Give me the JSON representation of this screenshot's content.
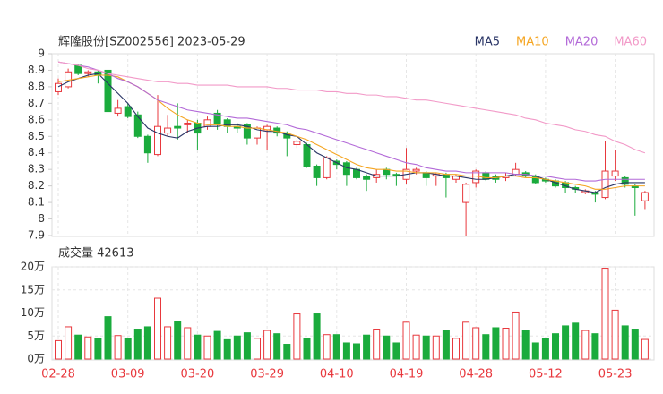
{
  "chart_data": [
    {
      "type": "candlestick",
      "title": "辉隆股份[SZ002556] 2023-05-29",
      "open": [
        8.77,
        8.8,
        8.93,
        8.88,
        8.89,
        8.9,
        8.64,
        8.68,
        8.63,
        8.5,
        8.39,
        8.52,
        8.56,
        8.57,
        8.58,
        8.56,
        8.64,
        8.6,
        8.56,
        8.57,
        8.49,
        8.54,
        8.55,
        8.52,
        8.45,
        8.45,
        8.32,
        8.25,
        8.35,
        8.34,
        8.3,
        8.26,
        8.25,
        8.3,
        8.27,
        8.24,
        8.29,
        8.28,
        8.26,
        8.27,
        8.24,
        8.1,
        8.22,
        8.28,
        8.26,
        8.25,
        8.27,
        8.28,
        8.26,
        8.24,
        8.23,
        8.22,
        8.19,
        8.16,
        8.16,
        8.13,
        8.26,
        8.25,
        8.2,
        8.11
      ],
      "high": [
        8.85,
        8.91,
        8.94,
        8.9,
        8.9,
        8.91,
        8.72,
        8.7,
        8.65,
        8.51,
        8.75,
        8.63,
        8.7,
        8.6,
        8.6,
        8.62,
        8.66,
        8.61,
        8.58,
        8.58,
        8.56,
        8.57,
        8.56,
        8.53,
        8.48,
        8.46,
        8.33,
        8.38,
        8.36,
        8.35,
        8.31,
        8.27,
        8.3,
        8.31,
        8.28,
        8.43,
        8.31,
        8.29,
        8.28,
        8.28,
        8.27,
        8.22,
        8.3,
        8.29,
        8.27,
        8.28,
        8.34,
        8.29,
        8.27,
        8.25,
        8.24,
        8.23,
        8.2,
        8.18,
        8.17,
        8.47,
        8.42,
        8.26,
        8.21,
        8.17
      ],
      "low": [
        8.75,
        8.79,
        8.87,
        8.86,
        8.82,
        8.64,
        8.62,
        8.61,
        8.49,
        8.34,
        8.38,
        8.5,
        8.48,
        8.52,
        8.42,
        8.54,
        8.54,
        8.52,
        8.52,
        8.45,
        8.45,
        8.42,
        8.5,
        8.38,
        8.43,
        8.31,
        8.2,
        8.24,
        8.3,
        8.2,
        8.24,
        8.17,
        8.22,
        8.24,
        8.2,
        8.21,
        8.27,
        8.2,
        8.2,
        8.13,
        8.22,
        7.9,
        8.19,
        8.23,
        8.22,
        8.23,
        8.26,
        8.25,
        8.21,
        8.22,
        8.19,
        8.16,
        8.16,
        8.15,
        8.1,
        8.12,
        8.23,
        8.19,
        8.02,
        8.06
      ],
      "close": [
        8.82,
        8.89,
        8.88,
        8.89,
        8.87,
        8.65,
        8.67,
        8.62,
        8.5,
        8.4,
        8.56,
        8.55,
        8.55,
        8.58,
        8.52,
        8.6,
        8.58,
        8.56,
        8.55,
        8.49,
        8.55,
        8.56,
        8.52,
        8.49,
        8.47,
        8.32,
        8.25,
        8.37,
        8.33,
        8.27,
        8.25,
        8.24,
        8.27,
        8.27,
        8.26,
        8.3,
        8.3,
        8.25,
        8.27,
        8.25,
        8.26,
        8.21,
        8.29,
        8.24,
        8.24,
        8.26,
        8.3,
        8.26,
        8.22,
        8.23,
        8.2,
        8.19,
        8.18,
        8.17,
        8.15,
        8.29,
        8.29,
        8.21,
        8.19,
        8.16
      ],
      "up_color": "#e8383d",
      "down_color": "#1aab3c",
      "series": [
        {
          "name": "MA5",
          "color": "#2a3566",
          "values": [
            8.8,
            8.83,
            8.85,
            8.87,
            8.88,
            8.82,
            8.76,
            8.7,
            8.62,
            8.55,
            8.52,
            8.5,
            8.49,
            8.53,
            8.55,
            8.56,
            8.56,
            8.57,
            8.57,
            8.56,
            8.54,
            8.53,
            8.53,
            8.51,
            8.5,
            8.45,
            8.4,
            8.37,
            8.34,
            8.31,
            8.3,
            8.28,
            8.26,
            8.26,
            8.26,
            8.27,
            8.28,
            8.28,
            8.27,
            8.26,
            8.26,
            8.25,
            8.24,
            8.24,
            8.25,
            8.26,
            8.27,
            8.27,
            8.26,
            8.24,
            8.22,
            8.2,
            8.18,
            8.17,
            8.16,
            8.19,
            8.21,
            8.22,
            8.22,
            8.22
          ]
        },
        {
          "name": "MA10",
          "color": "#f5a623",
          "values": [
            8.83,
            8.84,
            8.85,
            8.86,
            8.87,
            8.87,
            8.86,
            8.83,
            8.8,
            8.76,
            8.72,
            8.67,
            8.63,
            8.6,
            8.58,
            8.57,
            8.57,
            8.56,
            8.56,
            8.55,
            8.55,
            8.54,
            8.53,
            8.52,
            8.5,
            8.48,
            8.45,
            8.42,
            8.39,
            8.36,
            8.33,
            8.31,
            8.3,
            8.3,
            8.29,
            8.29,
            8.28,
            8.28,
            8.28,
            8.27,
            8.27,
            8.26,
            8.26,
            8.25,
            8.25,
            8.26,
            8.26,
            8.25,
            8.25,
            8.24,
            8.23,
            8.22,
            8.21,
            8.2,
            8.18,
            8.18,
            8.19,
            8.2,
            8.2,
            8.2
          ]
        },
        {
          "name": "MA20",
          "color": "#b36ad8",
          "values": [
            8.95,
            8.94,
            8.93,
            8.92,
            8.9,
            8.88,
            8.85,
            8.83,
            8.8,
            8.76,
            8.72,
            8.7,
            8.68,
            8.66,
            8.65,
            8.64,
            8.63,
            8.62,
            8.61,
            8.61,
            8.6,
            8.59,
            8.58,
            8.57,
            8.55,
            8.54,
            8.52,
            8.5,
            8.48,
            8.46,
            8.44,
            8.42,
            8.4,
            8.38,
            8.36,
            8.34,
            8.33,
            8.31,
            8.3,
            8.29,
            8.29,
            8.28,
            8.28,
            8.28,
            8.28,
            8.28,
            8.27,
            8.27,
            8.26,
            8.26,
            8.25,
            8.24,
            8.24,
            8.23,
            8.23,
            8.24,
            8.24,
            8.24,
            8.24,
            8.24
          ]
        },
        {
          "name": "MA60",
          "color": "#f29ac8",
          "values": [
            8.95,
            8.94,
            8.93,
            8.91,
            8.9,
            8.88,
            8.87,
            8.86,
            8.85,
            8.84,
            8.83,
            8.83,
            8.82,
            8.82,
            8.81,
            8.81,
            8.81,
            8.81,
            8.8,
            8.8,
            8.8,
            8.8,
            8.79,
            8.79,
            8.78,
            8.78,
            8.78,
            8.77,
            8.77,
            8.76,
            8.76,
            8.75,
            8.75,
            8.74,
            8.74,
            8.73,
            8.72,
            8.72,
            8.71,
            8.7,
            8.69,
            8.68,
            8.67,
            8.66,
            8.65,
            8.64,
            8.63,
            8.61,
            8.6,
            8.58,
            8.57,
            8.56,
            8.54,
            8.53,
            8.51,
            8.5,
            8.47,
            8.45,
            8.42,
            8.4
          ]
        }
      ],
      "ylim": [
        7.9,
        9
      ],
      "yticks": [
        7.9,
        8,
        8.1,
        8.2,
        8.3,
        8.4,
        8.5,
        8.6,
        8.7,
        8.8,
        8.9,
        9
      ]
    },
    {
      "type": "bar",
      "title": "成交量 42613",
      "categories": [
        "02-28",
        null,
        null,
        null,
        null,
        null,
        null,
        "03-09",
        null,
        null,
        null,
        null,
        null,
        null,
        "03-20",
        null,
        null,
        null,
        null,
        null,
        null,
        "03-29",
        null,
        null,
        null,
        null,
        null,
        null,
        "04-10",
        null,
        null,
        null,
        null,
        null,
        null,
        "04-19",
        null,
        null,
        null,
        null,
        null,
        null,
        "04-28",
        null,
        null,
        null,
        null,
        null,
        null,
        "05-12",
        null,
        null,
        null,
        null,
        null,
        null,
        "05-23",
        null,
        null,
        null
      ],
      "values": [
        4,
        7,
        5.2,
        4.8,
        4.4,
        9.2,
        5.1,
        4.5,
        6.5,
        7,
        13.2,
        7,
        8.2,
        6.8,
        5.2,
        5,
        6,
        4.2,
        5,
        5.7,
        4.5,
        6.2,
        5.5,
        3.2,
        9.8,
        4.5,
        9.8,
        5.3,
        5.3,
        3.5,
        3.3,
        5.2,
        6.5,
        5,
        3.5,
        8,
        5.2,
        5,
        5,
        6.3,
        4.5,
        8,
        6.8,
        5.3,
        6.8,
        6.7,
        10.2,
        6.3,
        3.5,
        4.5,
        5.5,
        7.2,
        7.8,
        6.2,
        5.5,
        19.7,
        10.6,
        7.2,
        6.5,
        4.2613
      ],
      "ylim": [
        0,
        20
      ],
      "yticks": [
        {
          "value": 0,
          "label": "0万"
        },
        {
          "value": 5,
          "label": "5万"
        },
        {
          "value": 10,
          "label": "10万"
        },
        {
          "value": 15,
          "label": "15万"
        },
        {
          "value": 20,
          "label": "20万"
        }
      ],
      "grid": true
    }
  ]
}
